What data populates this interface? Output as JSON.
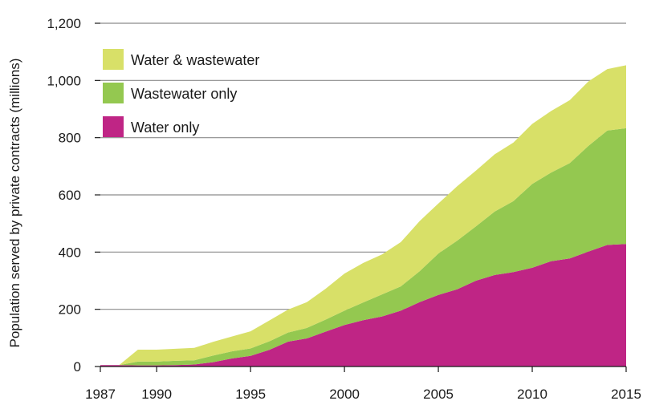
{
  "chart_data": {
    "type": "area",
    "stacked": true,
    "title": "",
    "xlabel": "",
    "ylabel": "Population served by private contracts (millions)",
    "xlim": [
      1987,
      2015
    ],
    "ylim": [
      0,
      1200
    ],
    "x_ticks": [
      1987,
      1990,
      1995,
      2000,
      2005,
      2010,
      2015
    ],
    "y_ticks": [
      0,
      200,
      400,
      600,
      800,
      1000,
      1200
    ],
    "y_tick_labels": [
      "0",
      "200",
      "400",
      "600",
      "800",
      "1,000",
      "1,200"
    ],
    "grid": "horizontal",
    "legend_position": "top-left",
    "x": [
      1987,
      1988,
      1989,
      1990,
      1991,
      1992,
      1993,
      1994,
      1995,
      1996,
      1997,
      1998,
      1999,
      2000,
      2001,
      2002,
      2003,
      2004,
      2005,
      2006,
      2007,
      2008,
      2009,
      2010,
      2011,
      2012,
      2013,
      2014,
      2015
    ],
    "series": [
      {
        "name": "Water only",
        "color": "#bf2585",
        "values": [
          5,
          5,
          4,
          4,
          5,
          7,
          15,
          28,
          37,
          58,
          87,
          98,
          122,
          145,
          162,
          175,
          195,
          225,
          250,
          270,
          300,
          320,
          330,
          345,
          368,
          378,
          402,
          425,
          428
        ]
      },
      {
        "name": "Wastewater only",
        "color": "#94c850",
        "values": [
          0,
          0,
          13,
          13,
          15,
          15,
          23,
          25,
          26,
          30,
          32,
          37,
          42,
          50,
          62,
          77,
          85,
          108,
          145,
          170,
          190,
          222,
          248,
          293,
          310,
          333,
          370,
          400,
          405
        ]
      },
      {
        "name": "Water & wastewater",
        "color": "#d8e068",
        "values": [
          0,
          0,
          42,
          42,
          42,
          43,
          48,
          52,
          60,
          73,
          80,
          90,
          108,
          130,
          138,
          140,
          155,
          175,
          175,
          190,
          195,
          200,
          205,
          210,
          215,
          220,
          225,
          215,
          220
        ]
      }
    ],
    "legend": [
      {
        "label": "Water & wastewater",
        "color": "#d8e068"
      },
      {
        "label": "Wastewater only",
        "color": "#94c850"
      },
      {
        "label": "Water only",
        "color": "#bf2585"
      }
    ]
  }
}
